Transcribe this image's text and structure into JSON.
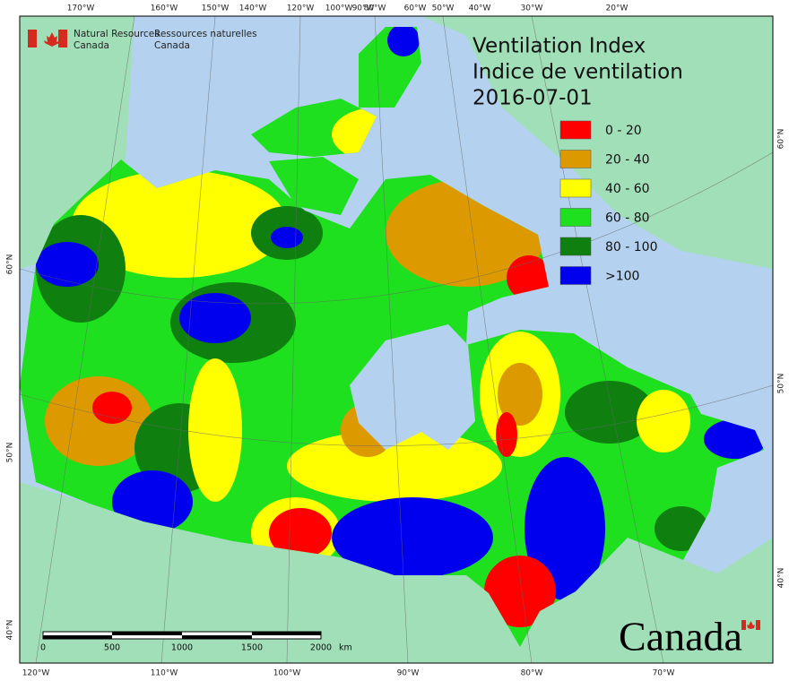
{
  "agency": {
    "en": [
      "Natural Resources",
      "Canada"
    ],
    "fr": [
      "Ressources naturelles",
      "Canada"
    ]
  },
  "title": [
    "Ventilation Index",
    "Indice de ventilation",
    "2016-07-01"
  ],
  "legend": [
    {
      "label": "0 - 20",
      "color": "#ff0000"
    },
    {
      "label": "20 - 40",
      "color": "#dd9a00"
    },
    {
      "label": "40 - 60",
      "color": "#ffff00"
    },
    {
      "label": "60 - 80",
      "color": "#1ee01e"
    },
    {
      "label": "80 - 100",
      "color": "#0f7f0f"
    },
    {
      "label": ">100",
      "color": "#0000ee"
    }
  ],
  "graticule": {
    "top": [
      "170°W",
      "160°W",
      "150°W",
      "140°W",
      "120°W",
      "100°W",
      "90°W",
      "80°W",
      "60°W",
      "50°W",
      "40°W",
      "30°W",
      "20°W"
    ],
    "bottom": [
      "120°W",
      "110°W",
      "100°W",
      "90°W",
      "80°W",
      "70°W"
    ],
    "left": [
      "60°N",
      "50°N",
      "40°N"
    ],
    "right": [
      "60°N",
      "50°N",
      "40°N"
    ]
  },
  "scale_bar": {
    "labels": [
      "0",
      "500",
      "1000",
      "1500",
      "2000"
    ],
    "unit": "km"
  },
  "wordmark": "Canada"
}
